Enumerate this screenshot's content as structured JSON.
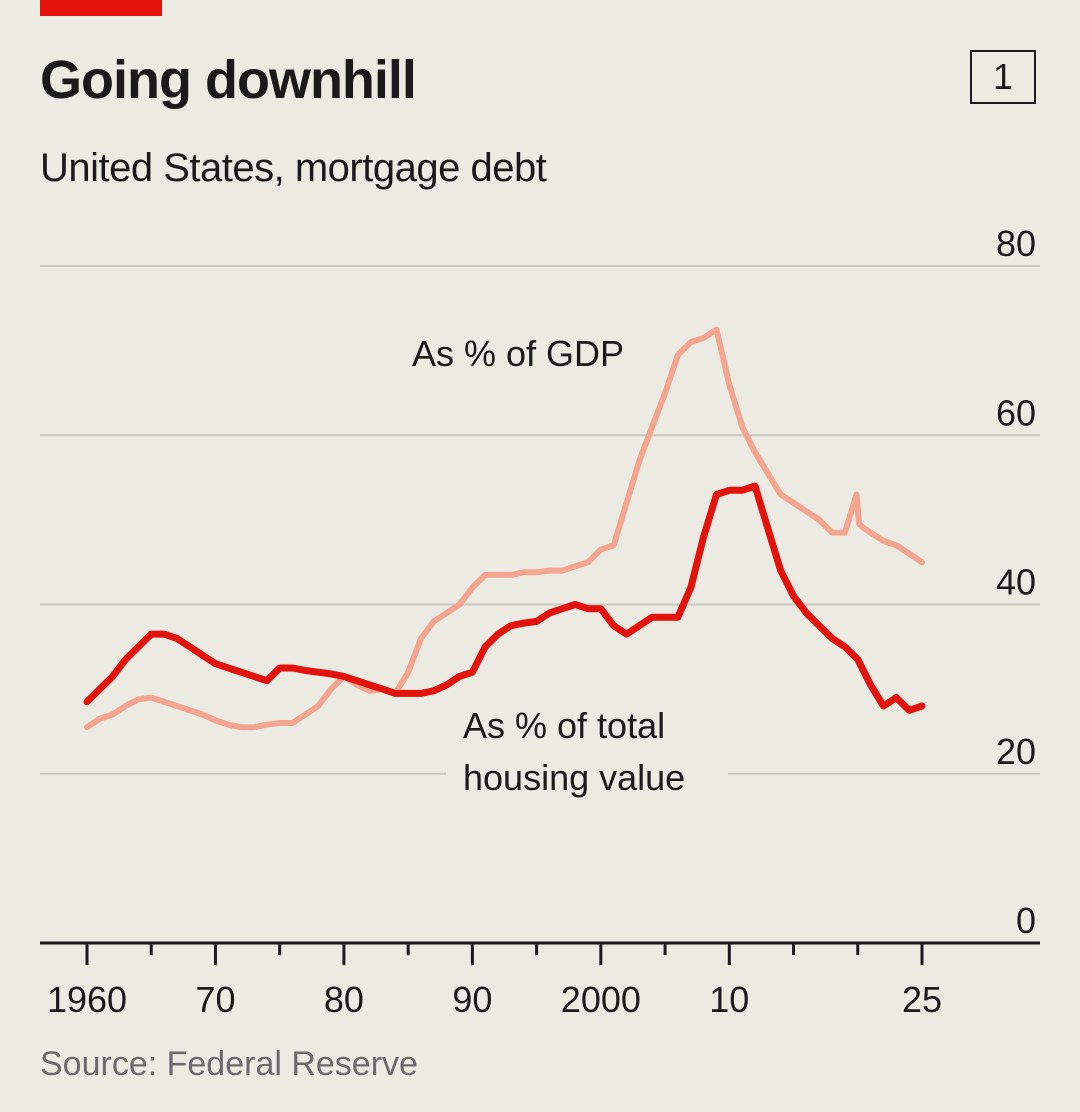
{
  "header": {
    "title": "Going downhill",
    "subtitle": "United States, mortgage debt",
    "chart_number": "1"
  },
  "footer": {
    "source": "Source: Federal Reserve"
  },
  "colors": {
    "accent": "#e3120b",
    "series_total_housing": "#e3120b",
    "series_gdp": "#f4a58f",
    "gridline": "#c9c7bf",
    "axis": "#1a1a1a"
  },
  "chart_data": {
    "type": "line",
    "title": "Going downhill",
    "subtitle": "United States, mortgage debt",
    "xlabel": "",
    "ylabel": "",
    "xlim": [
      1958,
      2033
    ],
    "ylim": [
      0,
      80
    ],
    "yticks": [
      0,
      20,
      40,
      60,
      80
    ],
    "ytick_labels": [
      "0",
      "20",
      "40",
      "60",
      "80"
    ],
    "xticks_major": [
      1960,
      1970,
      1980,
      1990,
      2000,
      2010,
      2025
    ],
    "xtick_labels": [
      "1960",
      "70",
      "80",
      "90",
      "2000",
      "10",
      "25"
    ],
    "xticks_minor": [
      1965,
      1975,
      1985,
      1995,
      2005,
      2015,
      2020
    ],
    "grid": true,
    "series": [
      {
        "name": "As % of GDP",
        "label_lines": [
          "As % of GDP"
        ],
        "color_key": "series_gdp",
        "x": [
          1960,
          1961,
          1962,
          1963,
          1964,
          1965,
          1966,
          1967,
          1968,
          1969,
          1970,
          1971,
          1972,
          1973,
          1974,
          1975,
          1976,
          1977,
          1978,
          1979,
          1980,
          1981,
          1982,
          1983,
          1984,
          1985,
          1986,
          1987,
          1988,
          1989,
          1990,
          1991,
          1992,
          1993,
          1994,
          1995,
          1996,
          1997,
          1998,
          1999,
          2000,
          2001,
          2002,
          2003,
          2004,
          2005,
          2006,
          2007,
          2008,
          2009,
          2010,
          2011,
          2012,
          2013,
          2014,
          2015,
          2016,
          2017,
          2018,
          2019,
          2019.9,
          2020.1,
          2020.5,
          2021,
          2022,
          2023,
          2024,
          2025
        ],
        "values": [
          25.5,
          26.5,
          27,
          28,
          28.8,
          29,
          28.5,
          28,
          27.5,
          27,
          26.3,
          25.8,
          25.5,
          25.5,
          25.8,
          26,
          26,
          27,
          28,
          30,
          31.5,
          30.5,
          29.8,
          30,
          29.5,
          32,
          36,
          38,
          39,
          40,
          42,
          43.5,
          43.5,
          43.5,
          43.8,
          43.8,
          44,
          44,
          44.5,
          45,
          46.5,
          47,
          52,
          57,
          61,
          65,
          69.5,
          71,
          71.5,
          72.5,
          66,
          61,
          58,
          55.5,
          53,
          52,
          51,
          50,
          48.5,
          48.5,
          53,
          49.5,
          49,
          48.5,
          47.5,
          47,
          46,
          45
        ]
      },
      {
        "name": "As % of total housing value",
        "label_lines": [
          "As % of total",
          "housing value"
        ],
        "color_key": "series_total_housing",
        "x": [
          1960,
          1961,
          1962,
          1963,
          1964,
          1965,
          1966,
          1967,
          1968,
          1969,
          1970,
          1971,
          1972,
          1973,
          1974,
          1975,
          1976,
          1977,
          1978,
          1979,
          1980,
          1981,
          1982,
          1983,
          1984,
          1985,
          1986,
          1987,
          1988,
          1989,
          1990,
          1991,
          1992,
          1993,
          1994,
          1995,
          1996,
          1997,
          1998,
          1999,
          2000,
          2001,
          2002,
          2003,
          2004,
          2005,
          2006,
          2007,
          2008,
          2009,
          2010,
          2011,
          2012,
          2013,
          2014,
          2015,
          2016,
          2017,
          2018,
          2019,
          2020,
          2021,
          2022,
          2023,
          2024,
          2025
        ],
        "values": [
          28.5,
          30,
          31.5,
          33.5,
          35,
          36.5,
          36.5,
          36,
          35,
          34,
          33,
          32.5,
          32,
          31.5,
          31,
          32.5,
          32.5,
          32.2,
          32,
          31.8,
          31.5,
          31,
          30.5,
          30,
          29.5,
          29.5,
          29.5,
          29.8,
          30.5,
          31.5,
          32,
          35,
          36.5,
          37.5,
          37.8,
          38,
          39,
          39.5,
          40,
          39.5,
          39.5,
          37.5,
          36.5,
          37.5,
          38.5,
          38.5,
          38.5,
          42,
          48,
          53,
          53.5,
          53.5,
          54,
          49,
          44,
          41,
          39,
          37.5,
          36,
          35,
          33.5,
          30.5,
          28,
          29,
          27.5,
          28
        ]
      }
    ],
    "annotations": [
      {
        "text": "As % of GDP",
        "series": "As % of GDP"
      },
      {
        "text": "As % of total housing value",
        "series": "As % of total housing value"
      }
    ]
  }
}
